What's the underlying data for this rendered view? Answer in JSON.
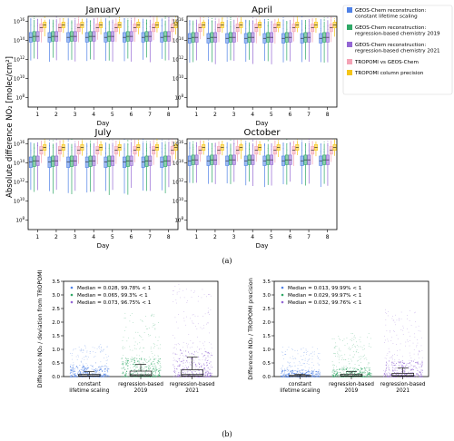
{
  "colors": {
    "gc_constant": "#4f81e6",
    "gc_2019": "#2fa866",
    "gc_2021": "#9467d4",
    "tropomi_vs_gc": "#f4a3b5",
    "tropomi_precision": "#f5c518",
    "median_line": "#1a1a1a"
  },
  "figure_a": {
    "ylabel": "Absolute difference NO₂ [molec/cm²]",
    "xlabel": "Day",
    "legend": [
      {
        "key": "gc_constant",
        "label": "GEOS-Chem reconstruction:\nconstant lifetime scaling"
      },
      {
        "key": "gc_2019",
        "label": "GEOS-Chem reconstruction:\nregression-based chemistry 2019"
      },
      {
        "key": "gc_2021",
        "label": "GEOS-Chem reconstruction:\nregression-based chemistry 2021"
      },
      {
        "key": "tropomi_vs_gc",
        "label": "TROPOMI vs GEOS-Chem"
      },
      {
        "key": "tropomi_precision",
        "label": "TROPOMI column precision"
      }
    ],
    "caption": "(a)"
  },
  "figure_b": {
    "caption": "(b)"
  },
  "chart_data": [
    {
      "type": "box",
      "title": "January",
      "xlabel": "Day",
      "ylabel": "Absolute difference NO₂ [molec/cm²]",
      "yscale": "log",
      "ylim_log10": [
        7,
        16.5
      ],
      "yticks_log10": [
        8,
        10,
        12,
        14,
        16
      ],
      "categories": [
        "1",
        "2",
        "3",
        "4",
        "5",
        "6",
        "7",
        "8"
      ],
      "series_keys": [
        "gc_constant",
        "gc_2019",
        "gc_2021",
        "tropomi_vs_gc",
        "tropomi_precision"
      ],
      "series_log10": {
        "min": [
          11.8,
          12.0,
          11.9,
          13.9,
          14.6
        ],
        "q1": [
          13.8,
          13.9,
          13.9,
          14.9,
          15.3
        ],
        "median": [
          14.3,
          14.4,
          14.4,
          15.3,
          15.6
        ],
        "q3": [
          14.8,
          14.9,
          14.9,
          15.7,
          15.9
        ],
        "max": [
          16.2,
          16.1,
          16.2,
          16.3,
          16.2
        ]
      }
    },
    {
      "type": "box",
      "title": "April",
      "xlabel": "Day",
      "yscale": "log",
      "ylim_log10": [
        7,
        16.5
      ],
      "yticks_log10": [
        8,
        10,
        12,
        14,
        16
      ],
      "categories": [
        "1",
        "2",
        "3",
        "4",
        "5",
        "6",
        "7",
        "8"
      ],
      "series_keys": [
        "gc_constant",
        "gc_2019",
        "gc_2021",
        "tropomi_vs_gc",
        "tropomi_precision"
      ],
      "series_log10": {
        "min": [
          11.6,
          11.8,
          11.7,
          13.9,
          14.6
        ],
        "q1": [
          13.7,
          13.8,
          13.8,
          14.9,
          15.3
        ],
        "median": [
          14.2,
          14.3,
          14.3,
          15.3,
          15.6
        ],
        "q3": [
          14.7,
          14.8,
          14.8,
          15.7,
          15.9
        ],
        "max": [
          16.1,
          16.0,
          16.1,
          16.3,
          16.2
        ]
      }
    },
    {
      "type": "box",
      "title": "July",
      "xlabel": "Day",
      "yscale": "log",
      "ylim_log10": [
        7,
        16.5
      ],
      "yticks_log10": [
        8,
        10,
        12,
        14,
        16
      ],
      "categories": [
        "1",
        "2",
        "3",
        "4",
        "5",
        "6",
        "7",
        "8"
      ],
      "series_keys": [
        "gc_constant",
        "gc_2019",
        "gc_2021",
        "tropomi_vs_gc",
        "tropomi_precision"
      ],
      "series_log10": {
        "min": [
          11.0,
          10.8,
          11.2,
          13.9,
          14.6
        ],
        "q1": [
          13.5,
          13.6,
          13.7,
          14.9,
          15.3
        ],
        "median": [
          14.1,
          14.2,
          14.2,
          15.3,
          15.6
        ],
        "q3": [
          14.6,
          14.7,
          14.7,
          15.7,
          15.9
        ],
        "max": [
          16.1,
          16.0,
          16.1,
          16.3,
          16.2
        ]
      }
    },
    {
      "type": "box",
      "title": "October",
      "xlabel": "Day",
      "yscale": "log",
      "ylim_log10": [
        7,
        16.5
      ],
      "yticks_log10": [
        8,
        10,
        12,
        14,
        16
      ],
      "categories": [
        "1",
        "2",
        "3",
        "4",
        "5",
        "6",
        "7",
        "8"
      ],
      "series_keys": [
        "gc_constant",
        "gc_2019",
        "gc_2021",
        "tropomi_vs_gc",
        "tropomi_precision"
      ],
      "series_log10": {
        "min": [
          11.7,
          11.8,
          11.8,
          13.9,
          14.6
        ],
        "q1": [
          13.7,
          13.8,
          13.8,
          14.9,
          15.3
        ],
        "median": [
          14.2,
          14.3,
          14.3,
          15.3,
          15.6
        ],
        "q3": [
          14.7,
          14.8,
          14.8,
          15.7,
          15.9
        ],
        "max": [
          16.1,
          16.0,
          16.1,
          16.3,
          16.2
        ]
      }
    },
    {
      "type": "scatter",
      "ylabel": "Difference NO₂ / deviation from TROPOMI",
      "ylim": [
        0,
        3.5
      ],
      "yticks": [
        0.0,
        0.5,
        1.0,
        1.5,
        2.0,
        2.5,
        3.0,
        3.5
      ],
      "categories": [
        "constant\nlifetime scaling",
        "regression-based\n2019",
        "regression-based\n2021"
      ],
      "series_keys": [
        "gc_constant",
        "gc_2019",
        "gc_2021"
      ],
      "legend": [
        "Median = 0.028, 99.78% < 1",
        "Median = 0.065, 99.3% < 1",
        "Median = 0.073, 96.75% < 1"
      ],
      "median": [
        0.028,
        0.065,
        0.073
      ],
      "q1": [
        0.01,
        0.02,
        0.02
      ],
      "q3": [
        0.08,
        0.2,
        0.25
      ],
      "whisker_high": [
        0.18,
        0.45,
        0.72
      ],
      "cloud_max": [
        1.2,
        2.4,
        3.4
      ],
      "dense_top": [
        0.4,
        0.7,
        1.0
      ]
    },
    {
      "type": "scatter",
      "ylabel": "Difference NO₂ / TROPOMI precision",
      "ylim": [
        0,
        3.5
      ],
      "yticks": [
        0.0,
        0.5,
        1.0,
        1.5,
        2.0,
        2.5,
        3.0,
        3.5
      ],
      "categories": [
        "constant\nlifetime scaling",
        "regression-based\n2019",
        "regression-based\n2021"
      ],
      "series_keys": [
        "gc_constant",
        "gc_2019",
        "gc_2021"
      ],
      "legend": [
        "Median = 0.013, 99.99% < 1",
        "Median = 0.029, 99.97% < 1",
        "Median = 0.032, 99.76% < 1"
      ],
      "median": [
        0.013,
        0.029,
        0.032
      ],
      "q1": [
        0.005,
        0.01,
        0.01
      ],
      "q3": [
        0.04,
        0.09,
        0.12
      ],
      "whisker_high": [
        0.08,
        0.18,
        0.32
      ],
      "cloud_max": [
        1.1,
        1.6,
        2.5
      ],
      "dense_top": [
        0.25,
        0.35,
        0.6
      ]
    }
  ]
}
